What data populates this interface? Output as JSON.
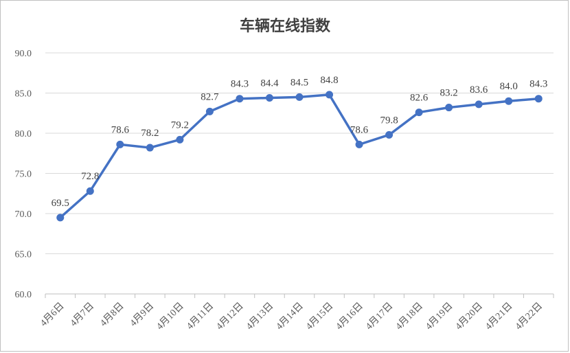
{
  "chart_data": {
    "type": "line",
    "title": "车辆在线指数",
    "categories": [
      "4月6日",
      "4月7日",
      "4月8日",
      "4月9日",
      "4月10日",
      "4月11日",
      "4月12日",
      "4月13日",
      "4月14日",
      "4月15日",
      "4月16日",
      "4月17日",
      "4月18日",
      "4月19日",
      "4月20日",
      "4月21日",
      "4月22日"
    ],
    "series": [
      {
        "values": [
          69.5,
          72.8,
          78.6,
          78.2,
          79.2,
          82.7,
          84.3,
          84.4,
          84.5,
          84.8,
          78.6,
          79.8,
          82.6,
          83.2,
          83.6,
          84.0,
          84.3
        ]
      }
    ],
    "data_labels": [
      "69.5",
      "72.8",
      "78.6",
      "78.2",
      "79.2",
      "82.7",
      "84.3",
      "84.4",
      "84.5",
      "84.8",
      "78.6",
      "79.8",
      "82.6",
      "83.2",
      "83.6",
      "84.0",
      "84.3"
    ],
    "ylim": [
      60,
      90
    ],
    "yticks": [
      "60.0",
      "65.0",
      "70.0",
      "75.0",
      "80.0",
      "85.0",
      "90.0"
    ],
    "grid": true,
    "line_color": "#4472c4"
  }
}
